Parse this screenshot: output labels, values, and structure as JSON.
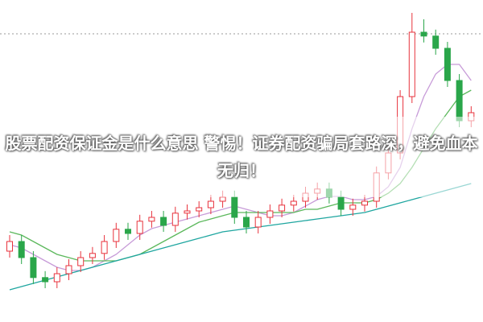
{
  "chart_data": {
    "type": "candlestick",
    "title": "股票配资保证金是什么意思 警惕！证券配资骗局套路深，避免血本无归！",
    "ylim": [
      0,
      100
    ],
    "reference_line": 89.5,
    "up_color": "#e8323c",
    "down_color": "#2aa64a",
    "open": [
      22,
      25,
      20,
      13.8,
      12.5,
      15,
      17.5,
      20,
      21.3,
      25,
      28.8,
      27.5,
      31.3,
      32.5,
      30,
      33.8,
      34.5,
      35.5,
      37.5,
      38.8,
      32.5,
      29.5,
      32.5,
      34.5,
      36.3,
      37.5,
      40,
      41.3,
      38.8,
      35,
      36.3,
      37.5,
      46.3,
      52.5,
      70,
      90,
      88.8,
      85,
      75,
      62.5
    ],
    "close": [
      25,
      20,
      13.8,
      12.5,
      15,
      17.5,
      20,
      21.3,
      25,
      28.8,
      27.5,
      31.3,
      32.5,
      30,
      33.8,
      34.5,
      35.5,
      37.5,
      38.8,
      32.5,
      29.5,
      32.5,
      34.5,
      36.3,
      37.5,
      40,
      41.3,
      38.8,
      35,
      36.3,
      37.5,
      46.3,
      52.5,
      70,
      90,
      88.8,
      85,
      75,
      62.5,
      65
    ],
    "high": [
      27,
      27,
      22,
      15.8,
      17,
      19.5,
      22,
      23.3,
      27,
      30.8,
      30.8,
      33.3,
      34.5,
      34.5,
      35.8,
      36.5,
      37.5,
      39.5,
      40.8,
      40.8,
      34.5,
      34.5,
      36.5,
      38.3,
      39.5,
      42,
      43.3,
      43.3,
      40.8,
      38.3,
      39.5,
      48.3,
      54.5,
      72,
      96,
      94,
      90.8,
      87,
      77,
      67
    ],
    "low": [
      20,
      18,
      11.8,
      10.5,
      10.5,
      13,
      15.5,
      18,
      19.3,
      23,
      25.5,
      25.5,
      29.3,
      28,
      28,
      31.8,
      32.5,
      33.5,
      35.5,
      30.5,
      27.5,
      27.5,
      30.5,
      32.5,
      34.3,
      35.5,
      38,
      36.8,
      33,
      33,
      34.3,
      35.5,
      44.3,
      50.5,
      68,
      86.8,
      83,
      73,
      60.5,
      60.5
    ],
    "series": [
      {
        "color": "#c79bd8",
        "values": [
          24,
          23,
          21,
          19,
          17,
          16,
          16,
          17,
          19,
          21,
          24,
          27,
          29,
          30,
          31,
          32,
          33,
          34,
          35,
          36,
          35,
          34,
          33,
          33,
          34,
          36,
          38,
          39,
          39,
          38,
          38,
          39,
          42,
          48,
          60,
          70,
          77,
          80,
          80,
          75
        ]
      },
      {
        "color": "#5cb85c",
        "values": [
          28,
          27,
          25,
          23,
          21,
          20,
          19,
          19,
          19,
          19,
          20,
          21,
          23,
          25,
          27,
          29,
          31,
          32,
          33,
          34,
          34,
          34,
          34,
          34,
          34,
          35,
          35,
          36,
          37,
          37,
          37,
          38,
          40,
          43,
          48,
          54,
          60,
          65,
          70,
          72
        ]
      },
      {
        "color": "#1fa6a0",
        "values": [
          10,
          11,
          12,
          13,
          14,
          15,
          16,
          17,
          18,
          19,
          20,
          21,
          22,
          23,
          24,
          25,
          26,
          27,
          28,
          28.5,
          29,
          29.5,
          30,
          30.5,
          31,
          31.5,
          32,
          32.5,
          33,
          33.5,
          34,
          35,
          36,
          37,
          38,
          39,
          40,
          41,
          42,
          43
        ]
      }
    ]
  }
}
